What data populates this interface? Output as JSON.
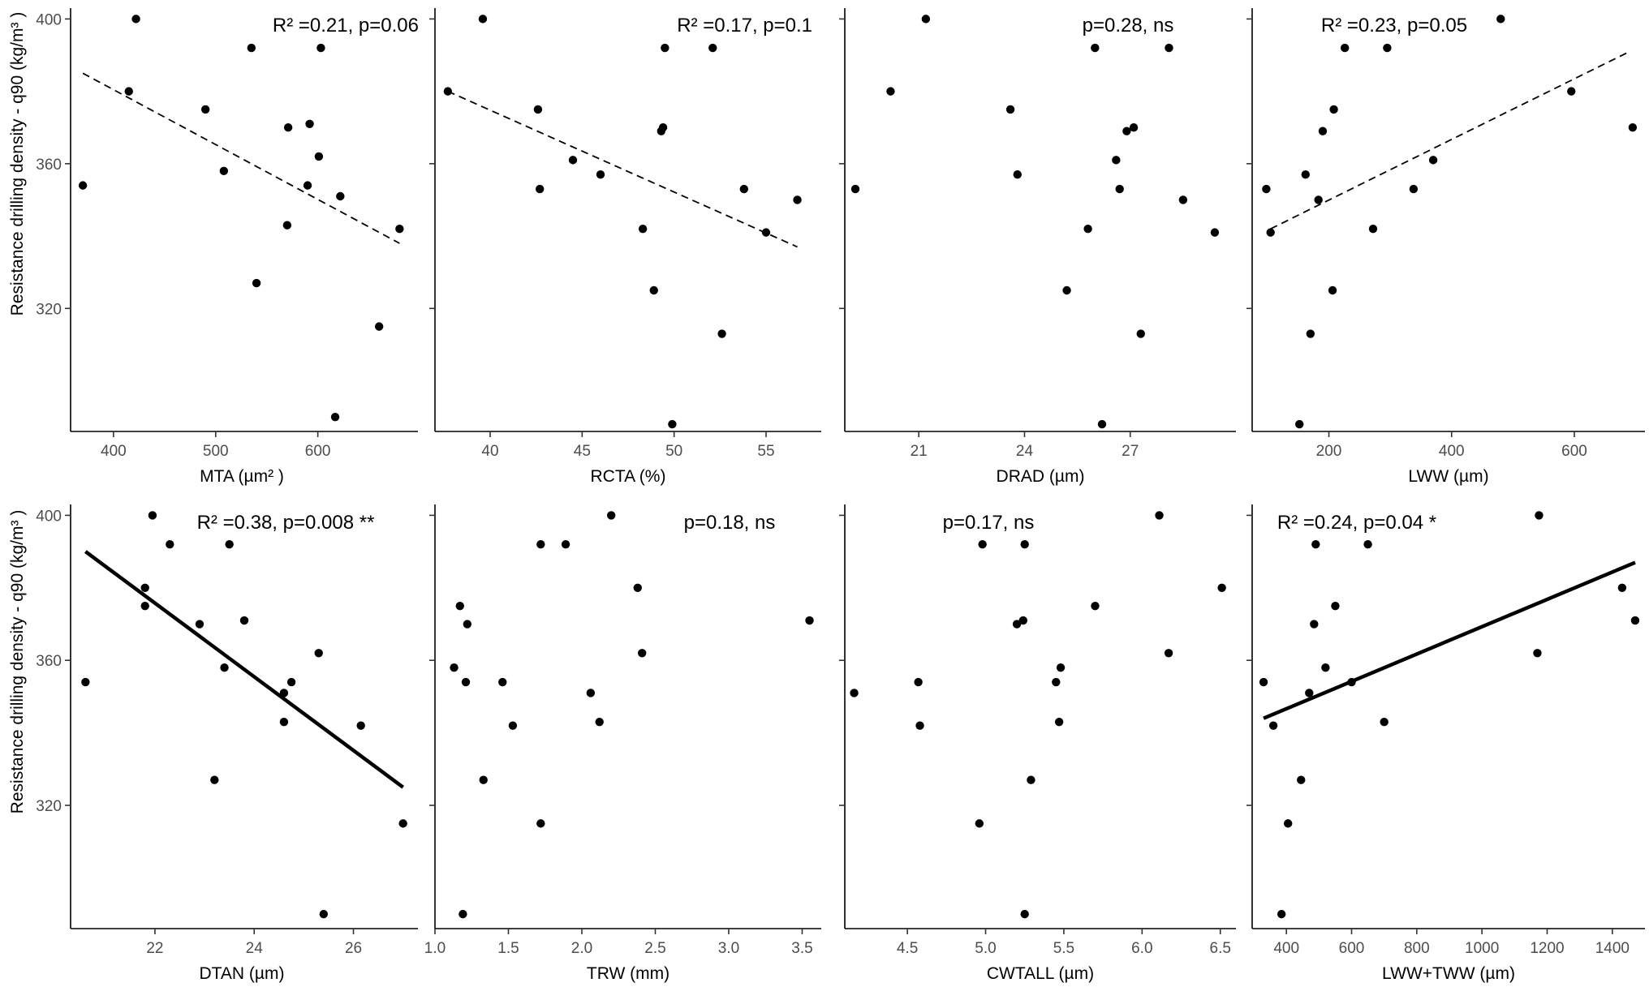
{
  "y_axis": {
    "title": "Resistance drilling density - q90 (kg/m³ )",
    "ticks": [
      320,
      360,
      400
    ],
    "range": [
      286,
      403
    ]
  },
  "chart_data": [
    {
      "type": "scatter",
      "xlabel": "MTA (µm² )",
      "xlim": [
        358,
        698
      ],
      "xticks": [
        400,
        500,
        600
      ],
      "annotation": "R² =0.21, p=0.06",
      "fit": {
        "style": "dashed",
        "x": [
          370,
          680
        ],
        "y": [
          385,
          338
        ]
      },
      "points": [
        [
          370,
          354
        ],
        [
          415,
          380
        ],
        [
          422,
          400
        ],
        [
          490,
          375
        ],
        [
          508,
          358
        ],
        [
          535,
          392
        ],
        [
          540,
          327
        ],
        [
          570,
          343
        ],
        [
          571,
          370
        ],
        [
          590,
          354
        ],
        [
          592,
          371
        ],
        [
          601,
          362
        ],
        [
          603,
          392
        ],
        [
          617,
          290
        ],
        [
          622,
          351
        ],
        [
          660,
          315
        ],
        [
          680,
          342
        ]
      ]
    },
    {
      "type": "scatter",
      "xlabel": "RCTA (%)",
      "xlim": [
        37,
        58
      ],
      "xticks": [
        40,
        45,
        50,
        55
      ],
      "annotation": "R² =0.17, p=0.1",
      "fit": {
        "style": "dashed",
        "x": [
          37.7,
          56.7
        ],
        "y": [
          380,
          337
        ]
      },
      "points": [
        [
          37.7,
          380
        ],
        [
          39.6,
          400
        ],
        [
          42.6,
          375
        ],
        [
          42.7,
          353
        ],
        [
          44.5,
          361
        ],
        [
          46.0,
          357
        ],
        [
          48.3,
          342
        ],
        [
          48.9,
          325
        ],
        [
          49.3,
          369
        ],
        [
          49.4,
          370
        ],
        [
          49.5,
          392
        ],
        [
          49.9,
          288
        ],
        [
          52.1,
          392
        ],
        [
          52.6,
          313
        ],
        [
          53.8,
          353
        ],
        [
          55.0,
          341
        ],
        [
          56.7,
          350
        ]
      ]
    },
    {
      "type": "scatter",
      "xlabel": "DRAD (µm)",
      "xlim": [
        18.9,
        30.0
      ],
      "xticks": [
        21,
        24,
        27
      ],
      "annotation": "p=0.28, ns",
      "fit": null,
      "points": [
        [
          19.2,
          353
        ],
        [
          20.2,
          380
        ],
        [
          21.2,
          400
        ],
        [
          23.6,
          375
        ],
        [
          23.8,
          357
        ],
        [
          25.2,
          325
        ],
        [
          26.0,
          392
        ],
        [
          25.8,
          342
        ],
        [
          26.2,
          288
        ],
        [
          26.6,
          361
        ],
        [
          26.7,
          353
        ],
        [
          26.9,
          369
        ],
        [
          27.1,
          370
        ],
        [
          27.3,
          313
        ],
        [
          28.1,
          392
        ],
        [
          28.5,
          350
        ],
        [
          29.4,
          341
        ]
      ]
    },
    {
      "type": "scatter",
      "xlabel": "LWW (µm)",
      "xlim": [
        75,
        715
      ],
      "xticks": [
        200,
        400,
        600
      ],
      "annotation": "R² =0.23, p=0.05",
      "fit": {
        "style": "dashed",
        "x": [
          105,
          690
        ],
        "y": [
          342,
          391
        ]
      },
      "points": [
        [
          98,
          353
        ],
        [
          105,
          341
        ],
        [
          152,
          288
        ],
        [
          162,
          357
        ],
        [
          170,
          313
        ],
        [
          183,
          350
        ],
        [
          190,
          369
        ],
        [
          206,
          325
        ],
        [
          208,
          375
        ],
        [
          226,
          392
        ],
        [
          272,
          342
        ],
        [
          295,
          392
        ],
        [
          338,
          353
        ],
        [
          370,
          361
        ],
        [
          480,
          400
        ],
        [
          595,
          380
        ],
        [
          695,
          370
        ]
      ]
    },
    {
      "type": "scatter",
      "xlabel": "DTAN (µm)",
      "xlim": [
        20.3,
        27.3
      ],
      "xticks": [
        22,
        24,
        26
      ],
      "annotation": "R² =0.38, p=0.008 **",
      "fit": {
        "style": "solid",
        "x": [
          20.6,
          27.0
        ],
        "y": [
          390,
          325
        ]
      },
      "points": [
        [
          20.6,
          354
        ],
        [
          21.8,
          380
        ],
        [
          21.8,
          375
        ],
        [
          21.95,
          400
        ],
        [
          22.3,
          392
        ],
        [
          22.9,
          370
        ],
        [
          23.2,
          327
        ],
        [
          23.4,
          358
        ],
        [
          23.5,
          392
        ],
        [
          23.8,
          371
        ],
        [
          24.6,
          343
        ],
        [
          24.6,
          351
        ],
        [
          24.75,
          354
        ],
        [
          25.3,
          362
        ],
        [
          25.4,
          290
        ],
        [
          26.15,
          342
        ],
        [
          27.0,
          315
        ]
      ]
    },
    {
      "type": "scatter",
      "xlabel": "TRW (mm)",
      "xlim": [
        1.0,
        3.63
      ],
      "xticks": [
        1.0,
        1.5,
        2.0,
        2.5,
        3.0,
        3.5
      ],
      "annotation": "p=0.18, ns",
      "fit": null,
      "points": [
        [
          1.13,
          358
        ],
        [
          1.17,
          375
        ],
        [
          1.19,
          290
        ],
        [
          1.21,
          354
        ],
        [
          1.22,
          370
        ],
        [
          1.33,
          327
        ],
        [
          1.46,
          354
        ],
        [
          1.53,
          342
        ],
        [
          1.72,
          392
        ],
        [
          1.72,
          315
        ],
        [
          1.89,
          392
        ],
        [
          2.06,
          351
        ],
        [
          2.12,
          343
        ],
        [
          2.2,
          400
        ],
        [
          2.38,
          380
        ],
        [
          2.41,
          362
        ],
        [
          3.55,
          371
        ]
      ]
    },
    {
      "type": "scatter",
      "xlabel": "CWTALL (µm)",
      "xlim": [
        4.1,
        6.6
      ],
      "xticks": [
        4.5,
        5.0,
        5.5,
        6.0,
        6.5
      ],
      "annotation": "p=0.17, ns",
      "fit": null,
      "points": [
        [
          4.16,
          351
        ],
        [
          4.57,
          354
        ],
        [
          4.58,
          342
        ],
        [
          4.96,
          315
        ],
        [
          4.98,
          392
        ],
        [
          5.2,
          370
        ],
        [
          5.24,
          371
        ],
        [
          5.25,
          392
        ],
        [
          5.25,
          290
        ],
        [
          5.29,
          327
        ],
        [
          5.45,
          354
        ],
        [
          5.47,
          343
        ],
        [
          5.48,
          358
        ],
        [
          5.7,
          375
        ],
        [
          6.11,
          400
        ],
        [
          6.17,
          362
        ],
        [
          6.51,
          380
        ]
      ]
    },
    {
      "type": "scatter",
      "xlabel": "LWW+TWW (µm)",
      "xlim": [
        295,
        1500
      ],
      "xticks": [
        400,
        600,
        800,
        1000,
        1200,
        1400
      ],
      "annotation": "R² =0.24, p=0.04 *",
      "fit": {
        "style": "solid",
        "x": [
          330,
          1470
        ],
        "y": [
          344,
          387
        ]
      },
      "points": [
        [
          330,
          354
        ],
        [
          360,
          342
        ],
        [
          385,
          290
        ],
        [
          405,
          315
        ],
        [
          445,
          327
        ],
        [
          470,
          351
        ],
        [
          485,
          370
        ],
        [
          490,
          392
        ],
        [
          520,
          358
        ],
        [
          550,
          375
        ],
        [
          600,
          354
        ],
        [
          650,
          392
        ],
        [
          700,
          343
        ],
        [
          1175,
          400
        ],
        [
          1170,
          362
        ],
        [
          1430,
          380
        ],
        [
          1470,
          371
        ]
      ]
    }
  ]
}
